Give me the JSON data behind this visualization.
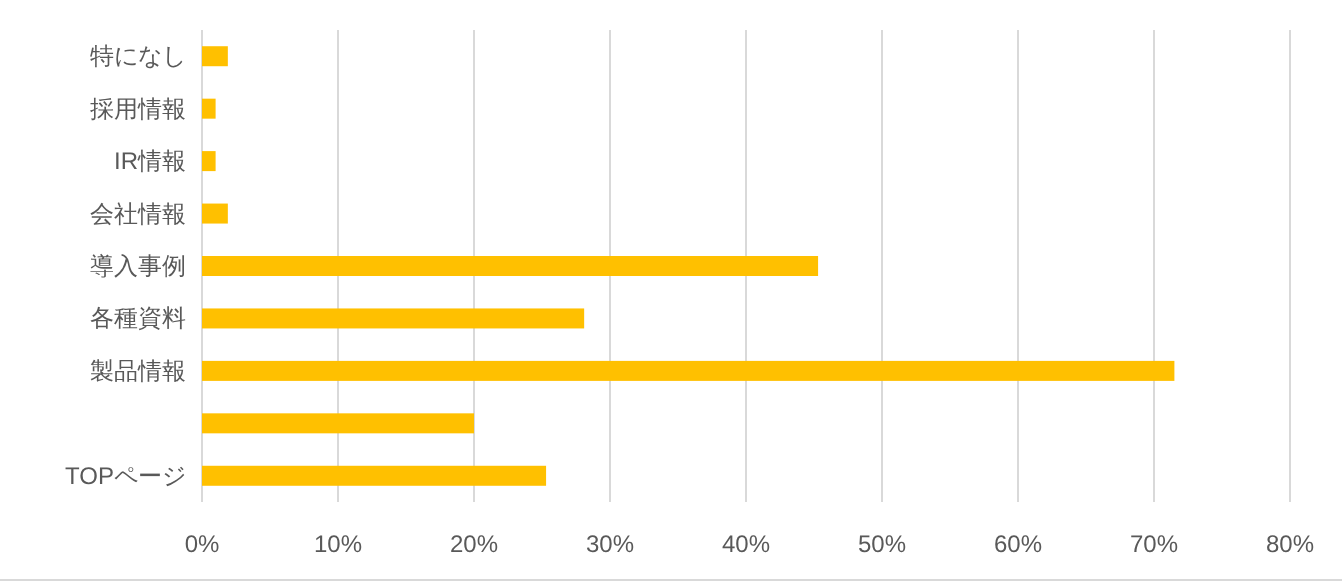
{
  "chart_data": {
    "type": "bar",
    "orientation": "horizontal",
    "categories": [
      "特になし",
      "採用情報",
      "IR情報",
      "会社情報",
      "導入事例",
      "各種資料",
      "製品情報",
      null,
      "TOPページ"
    ],
    "values": [
      1.9,
      1,
      1,
      1.9,
      45.3,
      28.1,
      71.5,
      20,
      25.3
    ],
    "color": "#ffc000",
    "xlim": [
      0,
      80
    ],
    "xticks": [
      {
        "value": 0,
        "label": "0%"
      },
      {
        "value": 10,
        "label": "10%"
      },
      {
        "value": 20,
        "label": "20%"
      },
      {
        "value": 30,
        "label": "30%"
      },
      {
        "value": 40,
        "label": "40%"
      },
      {
        "value": 50,
        "label": "50%"
      },
      {
        "value": 60,
        "label": "60%"
      },
      {
        "value": 70,
        "label": "70%"
      },
      {
        "value": 80,
        "label": "80%"
      }
    ],
    "grid": "x"
  }
}
